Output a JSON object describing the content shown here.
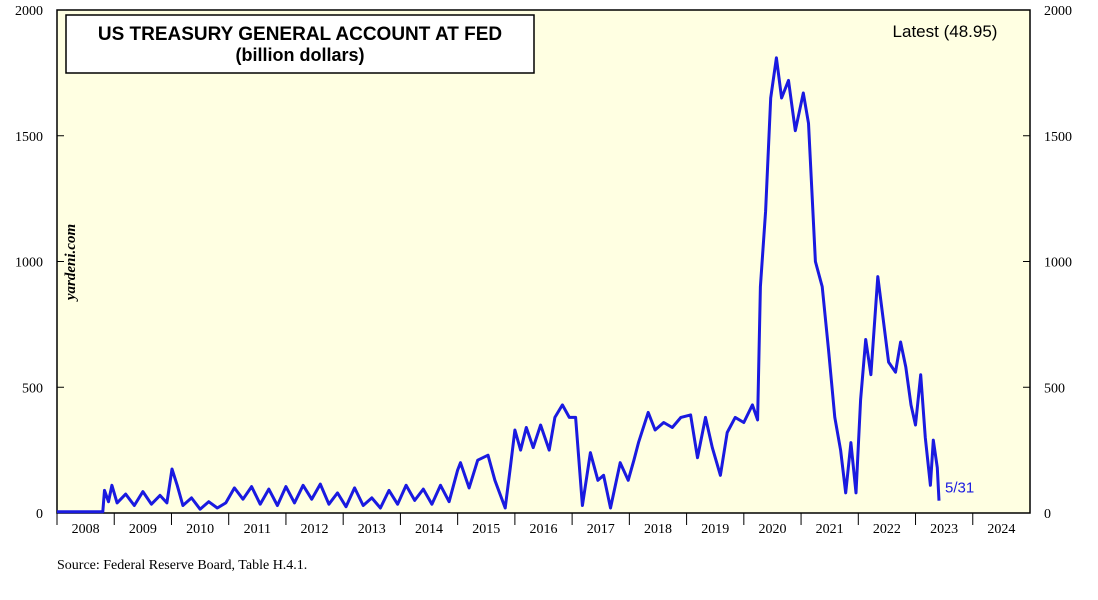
{
  "chart_data": {
    "type": "line",
    "title": "US TREASURY GENERAL ACCOUNT AT FED",
    "subtitle": "(billion dollars)",
    "latest_label": "Latest (48.95)",
    "end_label": "5/31",
    "watermark": "yardeni.com",
    "source": "Source: Federal Reserve Board, Table H.4.1.",
    "color": "#1a1ae0",
    "xlim": [
      2008,
      2025
    ],
    "xticks": [
      2008,
      2009,
      2010,
      2011,
      2012,
      2013,
      2014,
      2015,
      2016,
      2017,
      2018,
      2019,
      2020,
      2021,
      2022,
      2023,
      2024
    ],
    "ylim": [
      0,
      2000
    ],
    "yticks": [
      0,
      500,
      1000,
      1500,
      2000
    ],
    "y2lim": [
      0,
      2000
    ],
    "y2ticks": [
      0,
      500,
      1000,
      1500,
      2000
    ],
    "x": [
      2008.0,
      2008.4,
      2008.8,
      2008.83,
      2008.9,
      2008.96,
      2009.05,
      2009.2,
      2009.35,
      2009.5,
      2009.65,
      2009.8,
      2009.92,
      2010.01,
      2010.1,
      2010.2,
      2010.35,
      2010.5,
      2010.65,
      2010.8,
      2010.95,
      2011.1,
      2011.25,
      2011.4,
      2011.55,
      2011.7,
      2011.85,
      2012.0,
      2012.15,
      2012.3,
      2012.45,
      2012.6,
      2012.75,
      2012.9,
      2013.05,
      2013.2,
      2013.35,
      2013.5,
      2013.65,
      2013.8,
      2013.95,
      2014.1,
      2014.25,
      2014.4,
      2014.55,
      2014.7,
      2014.85,
      2015.0,
      2015.05,
      2015.2,
      2015.35,
      2015.53,
      2015.65,
      2015.83,
      2015.92,
      2016.0,
      2016.1,
      2016.2,
      2016.32,
      2016.45,
      2016.6,
      2016.7,
      2016.83,
      2016.95,
      2017.06,
      2017.18,
      2017.32,
      2017.45,
      2017.55,
      2017.67,
      2017.84,
      2017.98,
      2018.08,
      2018.16,
      2018.33,
      2018.45,
      2018.6,
      2018.75,
      2018.9,
      2019.07,
      2019.19,
      2019.33,
      2019.45,
      2019.59,
      2019.71,
      2019.85,
      2020.0,
      2020.15,
      2020.24,
      2020.29,
      2020.38,
      2020.47,
      2020.57,
      2020.66,
      2020.78,
      2020.9,
      2021.04,
      2021.13,
      2021.25,
      2021.37,
      2021.48,
      2021.59,
      2021.69,
      2021.78,
      2021.87,
      2021.96,
      2022.04,
      2022.13,
      2022.22,
      2022.34,
      2022.43,
      2022.53,
      2022.65,
      2022.74,
      2022.83,
      2022.92,
      2023.0,
      2023.09,
      2023.17,
      2023.26,
      2023.31,
      2023.38,
      2023.41
    ],
    "values": [
      5,
      5,
      5,
      90,
      45,
      110,
      40,
      75,
      30,
      85,
      35,
      70,
      40,
      175,
      110,
      30,
      60,
      15,
      45,
      20,
      40,
      100,
      55,
      105,
      35,
      95,
      30,
      105,
      40,
      110,
      55,
      115,
      35,
      80,
      25,
      100,
      30,
      60,
      20,
      90,
      35,
      110,
      50,
      95,
      35,
      110,
      45,
      170,
      200,
      100,
      210,
      230,
      130,
      20,
      180,
      330,
      250,
      340,
      260,
      350,
      250,
      380,
      430,
      380,
      380,
      30,
      240,
      130,
      150,
      20,
      200,
      130,
      210,
      280,
      400,
      330,
      360,
      340,
      380,
      390,
      220,
      380,
      260,
      150,
      320,
      380,
      360,
      430,
      370,
      900,
      1200,
      1650,
      1810,
      1650,
      1720,
      1520,
      1670,
      1550,
      1000,
      900,
      650,
      380,
      250,
      80,
      280,
      80,
      450,
      690,
      550,
      940,
      780,
      600,
      560,
      680,
      580,
      430,
      350,
      550,
      300,
      110,
      290,
      180,
      48.95
    ]
  }
}
